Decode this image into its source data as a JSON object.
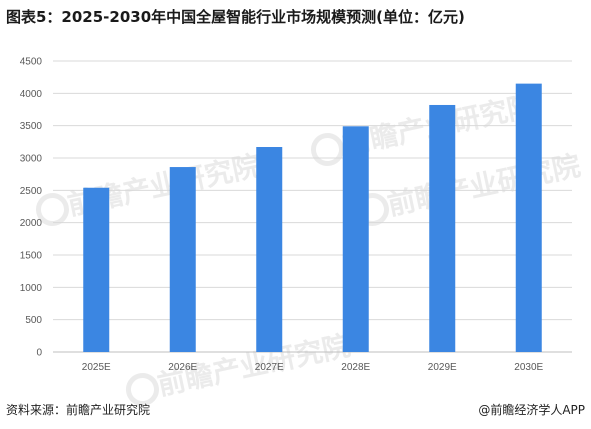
{
  "title": "图表5：2025-2030年中国全屋智能行业市场规模预测(单位：亿元)",
  "source": "资料来源：前瞻产业研究院",
  "brand": "@前瞻经济学人APP",
  "watermark": "前瞻产业研究院",
  "colors": {
    "bar": "#3b86e2",
    "grid": "#d9d9d9",
    "axis": "#bfbfbf",
    "tick_text": "#595959"
  },
  "chart_data": {
    "type": "bar",
    "categories": [
      "2025E",
      "2026E",
      "2027E",
      "2028E",
      "2029E",
      "2030E"
    ],
    "values": [
      2540,
      2860,
      3170,
      3490,
      3820,
      4150
    ],
    "yticks": [
      "0",
      "500",
      "1000",
      "1500",
      "2000",
      "2500",
      "3000",
      "3500",
      "4000",
      "4500"
    ],
    "ylim": [
      0,
      4500
    ],
    "grid": true,
    "legend": "none"
  }
}
